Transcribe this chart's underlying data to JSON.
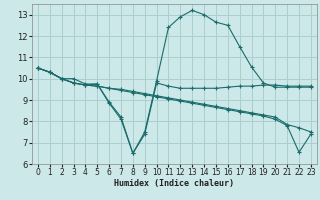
{
  "xlabel": "Humidex (Indice chaleur)",
  "ylabel": "",
  "background_color": "#cce8e8",
  "grid_color": "#aacfcf",
  "line_color": "#1a6b6b",
  "xlim": [
    -0.5,
    23.5
  ],
  "ylim": [
    6,
    13.5
  ],
  "xticks": [
    0,
    1,
    2,
    3,
    4,
    5,
    6,
    7,
    8,
    9,
    10,
    11,
    12,
    13,
    14,
    15,
    16,
    17,
    18,
    19,
    20,
    21,
    22,
    23
  ],
  "yticks": [
    6,
    7,
    8,
    9,
    10,
    11,
    12,
    13
  ],
  "series": [
    {
      "x": [
        0,
        1,
        2,
        3,
        4,
        5,
        6,
        7,
        8,
        9,
        10,
        11,
        12,
        13,
        14,
        15,
        16,
        17,
        18,
        19,
        20,
        21,
        22,
        23
      ],
      "y": [
        10.5,
        10.3,
        10.0,
        10.0,
        9.75,
        9.75,
        8.9,
        8.2,
        6.5,
        7.5,
        9.9,
        12.4,
        12.9,
        13.2,
        13.0,
        12.65,
        12.5,
        11.5,
        10.55,
        9.8,
        9.6,
        9.6,
        9.6,
        9.6
      ]
    },
    {
      "x": [
        0,
        1,
        2,
        3,
        4,
        5,
        6,
        7,
        8,
        9,
        10,
        11,
        12,
        13,
        14,
        15,
        16,
        17,
        18,
        19,
        20,
        21,
        22,
        23
      ],
      "y": [
        10.5,
        10.3,
        10.0,
        9.8,
        9.7,
        9.75,
        8.85,
        8.1,
        6.5,
        7.4,
        9.8,
        9.65,
        9.55,
        9.55,
        9.55,
        9.55,
        9.6,
        9.65,
        9.65,
        9.7,
        9.7,
        9.65,
        9.65,
        9.65
      ]
    },
    {
      "x": [
        0,
        1,
        2,
        3,
        4,
        5,
        6,
        7,
        8,
        9,
        10,
        11,
        12,
        13,
        14,
        15,
        16,
        17,
        18,
        19,
        20,
        21,
        22,
        23
      ],
      "y": [
        10.5,
        10.3,
        10.0,
        9.8,
        9.7,
        9.65,
        9.55,
        9.5,
        9.4,
        9.3,
        9.2,
        9.1,
        9.0,
        8.9,
        8.8,
        8.7,
        8.6,
        8.5,
        8.4,
        8.3,
        8.2,
        7.85,
        7.7,
        7.5
      ]
    },
    {
      "x": [
        0,
        1,
        2,
        3,
        4,
        5,
        6,
        7,
        8,
        9,
        10,
        11,
        12,
        13,
        14,
        15,
        16,
        17,
        18,
        19,
        20,
        21,
        22,
        23
      ],
      "y": [
        10.5,
        10.3,
        10.0,
        9.8,
        9.7,
        9.65,
        9.55,
        9.45,
        9.35,
        9.25,
        9.15,
        9.05,
        8.95,
        8.85,
        8.75,
        8.65,
        8.55,
        8.45,
        8.35,
        8.25,
        8.1,
        7.8,
        6.55,
        7.4
      ]
    }
  ]
}
